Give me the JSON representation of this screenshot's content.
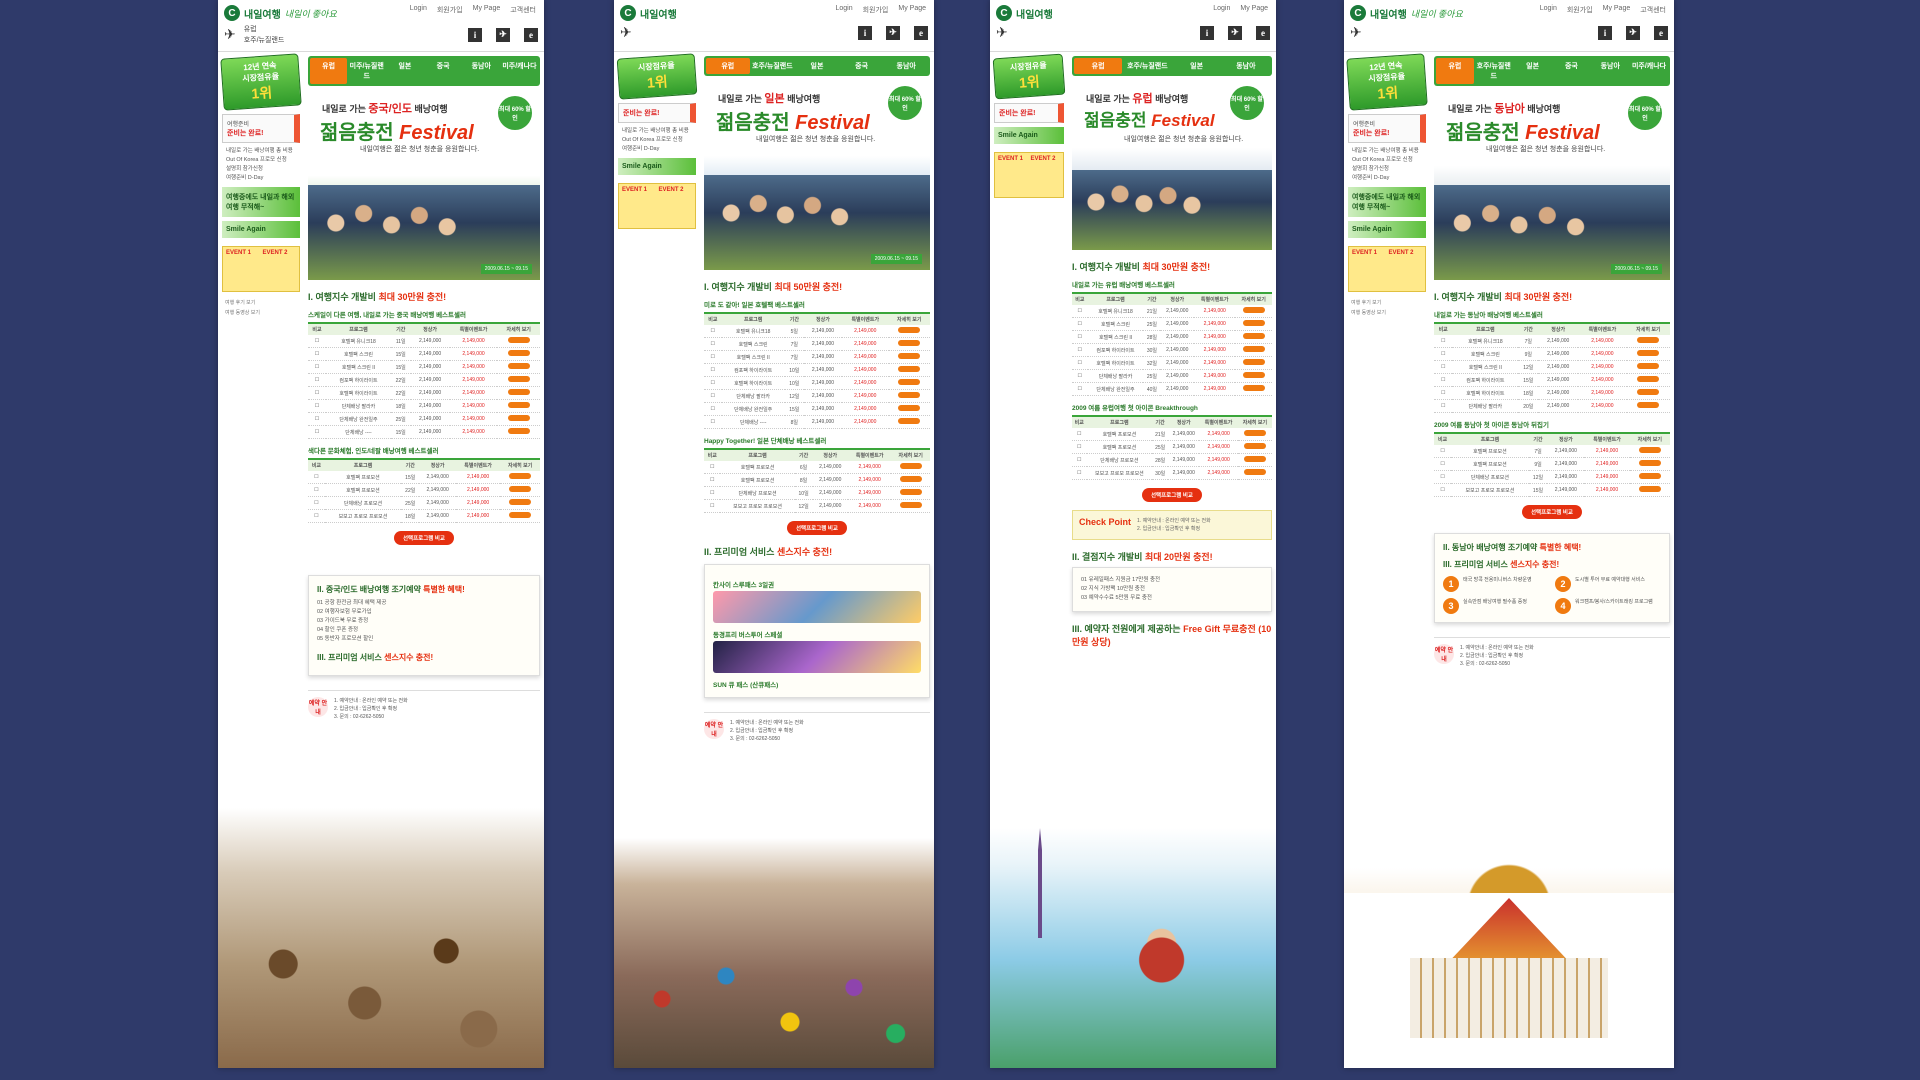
{
  "common": {
    "logo": "내일여행",
    "slogan": "내일이 좋아요",
    "top_links": [
      "Login",
      "회원가입",
      "My Page",
      "고객센터"
    ],
    "nav_mini": [
      "유럽",
      "호주/뉴질랜드",
      "미국/캐나다",
      "동남아",
      "중국"
    ],
    "info_icons": [
      "i",
      "✈",
      "e"
    ],
    "badge_line1": "12년 연속",
    "badge_line2": "시장점유율",
    "badge_rank": "1위",
    "side_prep": "여행준비",
    "side_prep_hl": "준비는 완료!",
    "side_list": [
      "내일로 가는 배낭여행 총 비용",
      "Out Of Korea 프로모 신청",
      "설명회 참가신청",
      "여행준비 D-Day"
    ],
    "green_tag_1": "여행중에도 내일과 해외여행 무적해~",
    "green_tag_2": "Smile Again",
    "event1": "EVENT 1",
    "event2": "EVENT 2",
    "side_links": [
      "여행 후기 보기",
      "여행 동영상 보기"
    ],
    "tabs": [
      "유럽",
      "미주/뉴질랜드",
      "호주/뉴질랜드",
      "일본",
      "중국",
      "동남아",
      "미주/캐나다"
    ],
    "hero_prefix": "내일로 가는",
    "hero_suffix": "배낭여행",
    "hero_title": "젊음충전",
    "hero_festival": "Festival",
    "hero_desc": "내일여행은 젊은 청년 청춘을 응원합니다.",
    "hero_circle": "최대 60% 할인",
    "hero_date": "2009.06.15 ~ 09.15",
    "table_headers": [
      "비교",
      "프로그램",
      "기간",
      "정상가",
      "특별이벤트가",
      "자세히 보기"
    ],
    "compare_btn": "선택프로그램 비교",
    "reserve_label": "예약 안내",
    "reserve_lines": [
      "1. 예약안내 : 온라인 예약 또는 전화",
      "2. 입금안내 : 입금확인 후 확정",
      "3. 문의 : 02-6262-5050"
    ]
  },
  "panels": [
    {
      "region": "중국/인도",
      "sec1_title": "I. 여행지수 개발비",
      "sec1_hl": "최대 30만원 충전!",
      "sub1": "스케일이 다른 여행, 내일로 가는 중국 배낭여행 베스트셀러",
      "rows1": [
        [
          "호텔팩 유니크18",
          "11일",
          "2,149,000",
          "2,149,000"
        ],
        [
          "호텔팩 스크린",
          "15일",
          "2,149,000",
          "2,149,000"
        ],
        [
          "호텔팩 스크린 II",
          "15일",
          "2,149,000",
          "2,149,000"
        ],
        [
          "컴포팩 하이라이트",
          "22일",
          "2,149,000",
          "2,149,000"
        ],
        [
          "호텔팩 하이라이트",
          "22일",
          "2,149,000",
          "2,149,000"
        ],
        [
          "단체배낭 팔라카",
          "18일",
          "2,149,000",
          "2,149,000"
        ],
        [
          "단체배낭 완전일주",
          "25일",
          "2,149,000",
          "2,149,000"
        ],
        [
          "단체배낭 ----",
          "15일",
          "2,149,000",
          "2,149,000"
        ]
      ],
      "sub2": "색다른 문화체험, 인도/네팔 배낭여행 베스트셀러",
      "rows2": [
        [
          "호텔팩 프로모션",
          "15일",
          "2,149,000",
          "2,149,000"
        ],
        [
          "호텔팩 프로모션",
          "22일",
          "2,149,000",
          "2,149,000"
        ],
        [
          "단체배낭 프로모션",
          "25일",
          "2,149,000",
          "2,149,000"
        ],
        [
          "보보고 프로모 프로모션",
          "18일",
          "2,149,000",
          "2,149,000"
        ]
      ],
      "sec2": "II. 중국/인도 배낭여행 조기예약",
      "sec2_hl": "특별한 혜택!",
      "sec3": "III. 프리미엄 서비스",
      "sec3_hl": "센스지수 충전!",
      "benefits": [
        "01 공항 환전금 최대 혜택 제공",
        "02 여행자보험 무료가입",
        "03 가이드북 무료 증정",
        "04 할인 쿠폰 증정",
        "05 동반자 프로모션 할인"
      ]
    },
    {
      "region": "일본",
      "sec1_title": "I. 여행지수 개발비",
      "sec1_hl": "최대 50만원 충전!",
      "sub1": "미로 도 같아! 일본 호텔팩 베스트셀러",
      "rows1": [
        [
          "호텔팩 유니크18",
          "5일",
          "2,149,000",
          "2,149,000"
        ],
        [
          "호텔팩 스크린",
          "7일",
          "2,149,000",
          "2,149,000"
        ],
        [
          "호텔팩 스크린 II",
          "7일",
          "2,149,000",
          "2,149,000"
        ],
        [
          "컴포팩 하이라이트",
          "10일",
          "2,149,000",
          "2,149,000"
        ],
        [
          "호텔팩 하이라이트",
          "10일",
          "2,149,000",
          "2,149,000"
        ],
        [
          "단체배낭 팔라카",
          "12일",
          "2,149,000",
          "2,149,000"
        ],
        [
          "단체배낭 완전일주",
          "15일",
          "2,149,000",
          "2,149,000"
        ],
        [
          "단체배낭 ----",
          "8일",
          "2,149,000",
          "2,149,000"
        ]
      ],
      "sub2": "Happy Together! 일본 단체배낭 베스트셀러",
      "rows2": [
        [
          "호텔팩 프로모션",
          "6일",
          "2,149,000",
          "2,149,000"
        ],
        [
          "호텔팩 프로모션",
          "8일",
          "2,149,000",
          "2,149,000"
        ],
        [
          "단체배낭 프로모션",
          "10일",
          "2,149,000",
          "2,149,000"
        ],
        [
          "보보고 프로모 프로모션",
          "12일",
          "2,149,000",
          "2,149,000"
        ]
      ],
      "sec2": "II. 프리미엄 서비스",
      "sec2_hl": "센스지수 충전!",
      "sec3": "간사이 스루패스 3일권",
      "sec3_hl": "SUN 큐 패스 (산큐패스)",
      "benefits": [
        "칸사이 스루패스 3일권",
        "동경프리 버스투어 스페셜",
        "SUN 큐 패스 (산큐패스)"
      ]
    },
    {
      "region": "유럽",
      "sec1_title": "I. 여행지수 개발비",
      "sec1_hl": "최대 30만원 충전!",
      "sub1": "내일로 가는 유럽 배낭여행 베스트셀러",
      "rows1": [
        [
          "호텔팩 유니크18",
          "21일",
          "2,149,000",
          "2,149,000"
        ],
        [
          "호텔팩 스크린",
          "25일",
          "2,149,000",
          "2,149,000"
        ],
        [
          "호텔팩 스크린 II",
          "28일",
          "2,149,000",
          "2,149,000"
        ],
        [
          "컴포팩 하이라이트",
          "30일",
          "2,149,000",
          "2,149,000"
        ],
        [
          "호텔팩 하이라이트",
          "32일",
          "2,149,000",
          "2,149,000"
        ],
        [
          "단체배낭 팔라카",
          "25일",
          "2,149,000",
          "2,149,000"
        ],
        [
          "단체배낭 완전일주",
          "40일",
          "2,149,000",
          "2,149,000"
        ]
      ],
      "sub2": "2009 여름 유럽여행 첫 아이콘 Breakthrough",
      "rows2": [
        [
          "호텔팩 프로모션",
          "21일",
          "2,149,000",
          "2,149,000"
        ],
        [
          "호텔팩 프로모션",
          "25일",
          "2,149,000",
          "2,149,000"
        ],
        [
          "단체배낭 프로모션",
          "28일",
          "2,149,000",
          "2,149,000"
        ],
        [
          "보보고 프로모 프로모션",
          "30일",
          "2,149,000",
          "2,149,000"
        ]
      ],
      "sec2": "II. 결점지수 개발비",
      "sec2_hl": "최대 20만원 충전!",
      "sec3": "III. 예약자 전원에게 제공하는",
      "sec3_hl": "Free Gift 무료충전 (10만원 상당)",
      "check_point": "Check Point",
      "benefits": [
        "01 유레일패스 지원금 17만원 충전",
        "02 지식 가방팩 10만원 충전",
        "03 예약수수료 5만원 무료 충전"
      ]
    },
    {
      "region": "동남아",
      "sec1_title": "I. 여행지수 개발비",
      "sec1_hl": "최대 30만원 충전!",
      "sub1": "내일로 가는 동남아 배낭여행 베스트셀러",
      "rows1": [
        [
          "호텔팩 유니크18",
          "7일",
          "2,149,000",
          "2,149,000"
        ],
        [
          "호텔팩 스크린",
          "9일",
          "2,149,000",
          "2,149,000"
        ],
        [
          "호텔팩 스크린 II",
          "12일",
          "2,149,000",
          "2,149,000"
        ],
        [
          "컴포팩 하이라이트",
          "15일",
          "2,149,000",
          "2,149,000"
        ],
        [
          "호텔팩 하이라이트",
          "18일",
          "2,149,000",
          "2,149,000"
        ],
        [
          "단체배낭 팔라카",
          "20일",
          "2,149,000",
          "2,149,000"
        ]
      ],
      "sub2": "2009 여름 동남아 첫 아이콘 동남아 뒤집기",
      "rows2": [
        [
          "호텔팩 프로모션",
          "7일",
          "2,149,000",
          "2,149,000"
        ],
        [
          "호텔팩 프로모션",
          "9일",
          "2,149,000",
          "2,149,000"
        ],
        [
          "단체배낭 프로모션",
          "12일",
          "2,149,000",
          "2,149,000"
        ],
        [
          "보보고 프로모 프로모션",
          "15일",
          "2,149,000",
          "2,149,000"
        ]
      ],
      "sec2": "II. 동남아 배낭여행 조기예약",
      "sec2_hl": "특별한 혜택!",
      "sec3": "III. 프리미엄 서비스",
      "sec3_hl": "센스지수 충전!",
      "benefits": [
        "태국 방콕 전용미니버스 차량운영",
        "도시별 투어 무료 예약대행 서비스",
        "실속만점 배낭여행 필수품 증정",
        "워크캠프/봉사/스카이트래킹 프로그램"
      ]
    }
  ],
  "colors": {
    "background": "#2f3a6a",
    "green": "#3aa53a",
    "orange": "#f07a10",
    "red": "#e53010"
  }
}
